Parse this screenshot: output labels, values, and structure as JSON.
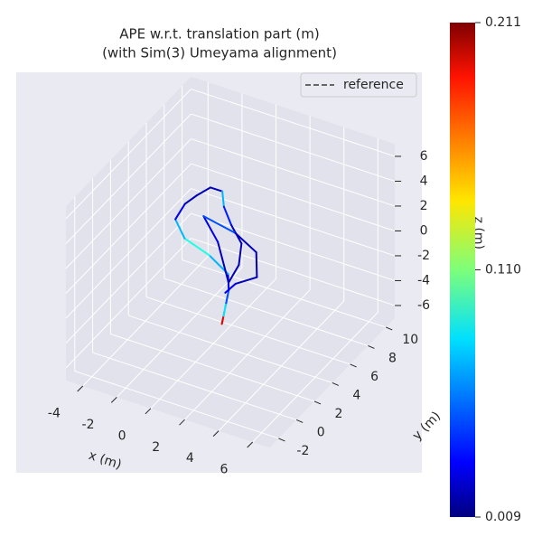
{
  "chart_data": {
    "type": "trajectory3d",
    "title": "APE w.r.t. translation part (m)",
    "subtitle": "(with Sim(3) Umeyama alignment)",
    "x_label": "x (m)",
    "y_label": "y (m)",
    "z_label": "z (m)",
    "xlim": [
      -5,
      7
    ],
    "ylim": [
      -3,
      11
    ],
    "zlim": [
      -7,
      7
    ],
    "xticks": [
      -4,
      -2,
      0,
      2,
      4,
      6
    ],
    "yticks": [
      -2,
      0,
      2,
      4,
      6,
      8,
      10
    ],
    "zticks": [
      -6,
      -4,
      -2,
      0,
      2,
      4,
      6
    ],
    "grid": true,
    "legend_position": "upper right",
    "reference": {
      "name": "reference",
      "color": "#666666",
      "x": [
        0.5,
        0.6,
        0.7,
        0.8
      ],
      "y": [
        4,
        4,
        4.1,
        4.2
      ],
      "z": [
        -5.2,
        -4.5,
        -3.5,
        -2.5
      ]
    },
    "estimate": {
      "x": [
        0.5,
        0.6,
        0.7,
        0.8,
        0.6,
        -0.5,
        -1.8,
        -2.5,
        -2.2,
        -1.5,
        -0.8,
        0,
        0.2,
        0.8,
        1.5,
        1.5,
        1.0,
        0,
        -1,
        0.5,
        2,
        2.3,
        1.2,
        0.7
      ],
      "y": [
        4,
        4,
        4.1,
        4.2,
        4.5,
        4.5,
        4.2,
        4.5,
        5,
        5,
        5.2,
        5,
        4.8,
        4.5,
        4.3,
        4.0,
        3.8,
        4.5,
        4.8,
        5.5,
        5,
        4.5,
        4.2,
        4.0
      ],
      "z": [
        -5.2,
        -4.5,
        -3.5,
        -2.5,
        -1.5,
        -0.5,
        0.5,
        1.5,
        2.5,
        3.5,
        4.3,
        4.5,
        3.5,
        2.5,
        1.5,
        0,
        -1.5,
        0.8,
        2.2,
        1,
        0.5,
        -1,
        -1.8,
        -2.6
      ],
      "error": [
        0.19,
        0.08,
        0.05,
        0.03,
        0.07,
        0.09,
        0.07,
        0.03,
        0.02,
        0.02,
        0.02,
        0.07,
        0.04,
        0.02,
        0.02,
        0.02,
        0.02,
        0.03,
        0.05,
        0.02,
        0.02,
        0.02,
        0.03,
        0.04
      ]
    },
    "colorbar": {
      "colormap": "jet",
      "lim": [
        0.009,
        0.211
      ],
      "ticks": [
        {
          "value": 0.009,
          "label": "0.009"
        },
        {
          "value": 0.11,
          "label": "0.110"
        },
        {
          "value": 0.211,
          "label": "0.211"
        }
      ]
    }
  }
}
